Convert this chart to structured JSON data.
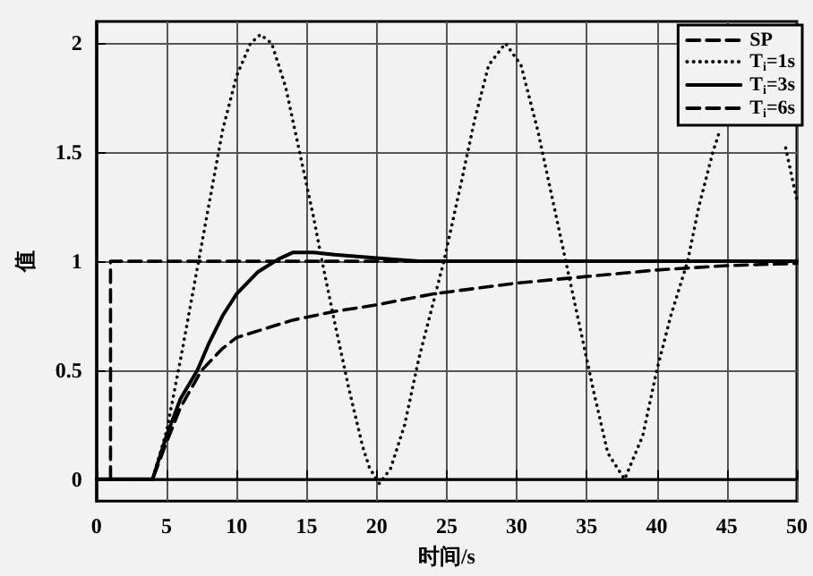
{
  "chart_data": {
    "type": "line",
    "xlabel": "时间/s",
    "ylabel": "值",
    "xlim": [
      0,
      50
    ],
    "xticks": [
      0,
      5,
      10,
      15,
      20,
      25,
      30,
      35,
      40,
      45,
      50
    ],
    "ylim": [
      -0.1,
      2.1
    ],
    "yticks": [
      0,
      0.5,
      1,
      1.5,
      2
    ],
    "grid": true,
    "legend": "top right",
    "marker": "none",
    "series": [
      {
        "name": "SP",
        "color": "#000000",
        "line_style": "dashed",
        "x": [
          1,
          1,
          50
        ],
        "values": [
          0,
          1,
          1
        ]
      },
      {
        "name": "T$_{i}$=1s",
        "color": "#000000",
        "line_style": "dotted",
        "x": [
          0,
          4,
          5,
          6,
          7,
          8,
          9,
          10,
          11,
          11.7,
          12.5,
          13.5,
          14.5,
          15.5,
          16.1,
          17,
          18,
          19,
          19.5,
          20.2,
          21,
          22,
          23,
          24,
          24.8,
          26,
          27,
          28,
          29.2,
          30.3,
          31.5,
          32.5,
          33.5,
          34.5,
          35.5,
          36.5,
          37.7,
          39,
          40,
          41,
          42.2,
          43,
          44,
          44.5,
          47,
          49.2,
          50
        ],
        "values": [
          0,
          0,
          0.22,
          0.55,
          0.9,
          1.25,
          1.6,
          1.85,
          2.0,
          2.04,
          2.0,
          1.8,
          1.5,
          1.2,
          1.0,
          0.72,
          0.42,
          0.15,
          0.05,
          -0.02,
          0.05,
          0.25,
          0.55,
          0.8,
          1.0,
          1.35,
          1.65,
          1.9,
          2.0,
          1.9,
          1.6,
          1.3,
          1.0,
          0.7,
          0.4,
          0.12,
          0.0,
          0.2,
          0.5,
          0.75,
          1.0,
          1.25,
          1.5,
          1.6,
          null,
          1.52,
          1.28
        ]
      },
      {
        "name": "T$_{i}$=3s",
        "color": "#000000",
        "line_style": "solid",
        "x": [
          0,
          4,
          5,
          6,
          7.2,
          8,
          9,
          10,
          11.5,
          13,
          14,
          15.5,
          17,
          19,
          21,
          23,
          50
        ],
        "values": [
          0,
          0,
          0.2,
          0.37,
          0.5,
          0.62,
          0.75,
          0.85,
          0.95,
          1.01,
          1.04,
          1.04,
          1.03,
          1.02,
          1.01,
          1.0,
          1.0
        ]
      },
      {
        "name": "T$_{i}$=6s",
        "color": "#000000",
        "line_style": "dashed",
        "x": [
          0,
          4,
          5,
          6,
          7.5,
          9,
          10,
          12,
          14,
          17,
          20,
          24,
          30,
          35,
          40,
          45,
          50
        ],
        "values": [
          0,
          0,
          0.17,
          0.33,
          0.5,
          0.6,
          0.65,
          0.69,
          0.73,
          0.77,
          0.8,
          0.85,
          0.9,
          0.93,
          0.96,
          0.98,
          0.99
        ]
      }
    ]
  }
}
